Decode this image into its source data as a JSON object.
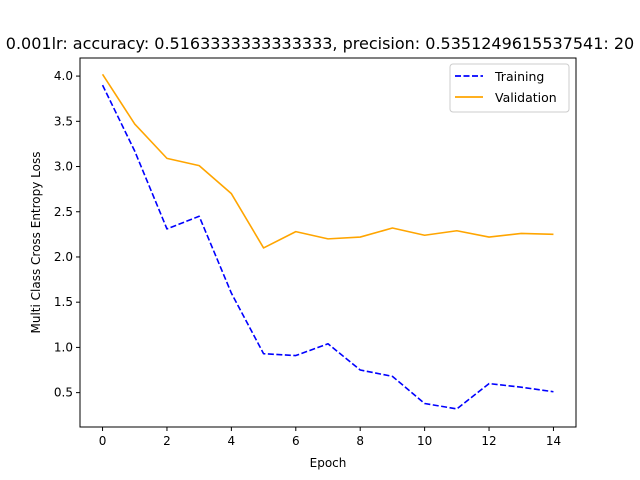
{
  "chart_data": {
    "type": "line",
    "title": "0.001lr: accuracy: 0.5163333333333333, precision: 0.5351249615537541: 20",
    "xlabel": "Epoch",
    "ylabel": "Multi Class Cross Entropy Loss",
    "x": [
      0,
      1,
      2,
      3,
      4,
      5,
      6,
      7,
      8,
      9,
      10,
      11,
      12,
      13,
      14
    ],
    "xlim": [
      -0.7,
      14.7
    ],
    "ylim": [
      0.12,
      4.2
    ],
    "xticks": [
      0,
      2,
      4,
      6,
      8,
      10,
      12,
      14
    ],
    "yticks": [
      0.5,
      1.0,
      1.5,
      2.0,
      2.5,
      3.0,
      3.5,
      4.0
    ],
    "xtick_labels": [
      "0",
      "2",
      "4",
      "6",
      "8",
      "10",
      "12",
      "14"
    ],
    "ytick_labels": [
      "0.5",
      "1.0",
      "1.5",
      "2.0",
      "2.5",
      "3.0",
      "3.5",
      "4.0"
    ],
    "grid": false,
    "legend_position": "top-right",
    "series": [
      {
        "name": "Training",
        "color": "#0000ff",
        "style": "dashed",
        "values": [
          3.9,
          3.17,
          2.31,
          2.45,
          1.6,
          0.93,
          0.91,
          1.04,
          0.75,
          0.68,
          0.38,
          0.32,
          0.6,
          0.56,
          0.51
        ]
      },
      {
        "name": "Validation",
        "color": "#ffa500",
        "style": "solid",
        "values": [
          4.02,
          3.47,
          3.09,
          3.01,
          2.7,
          2.1,
          2.28,
          2.2,
          2.22,
          2.32,
          2.24,
          2.29,
          2.22,
          2.26,
          2.25
        ]
      }
    ]
  }
}
